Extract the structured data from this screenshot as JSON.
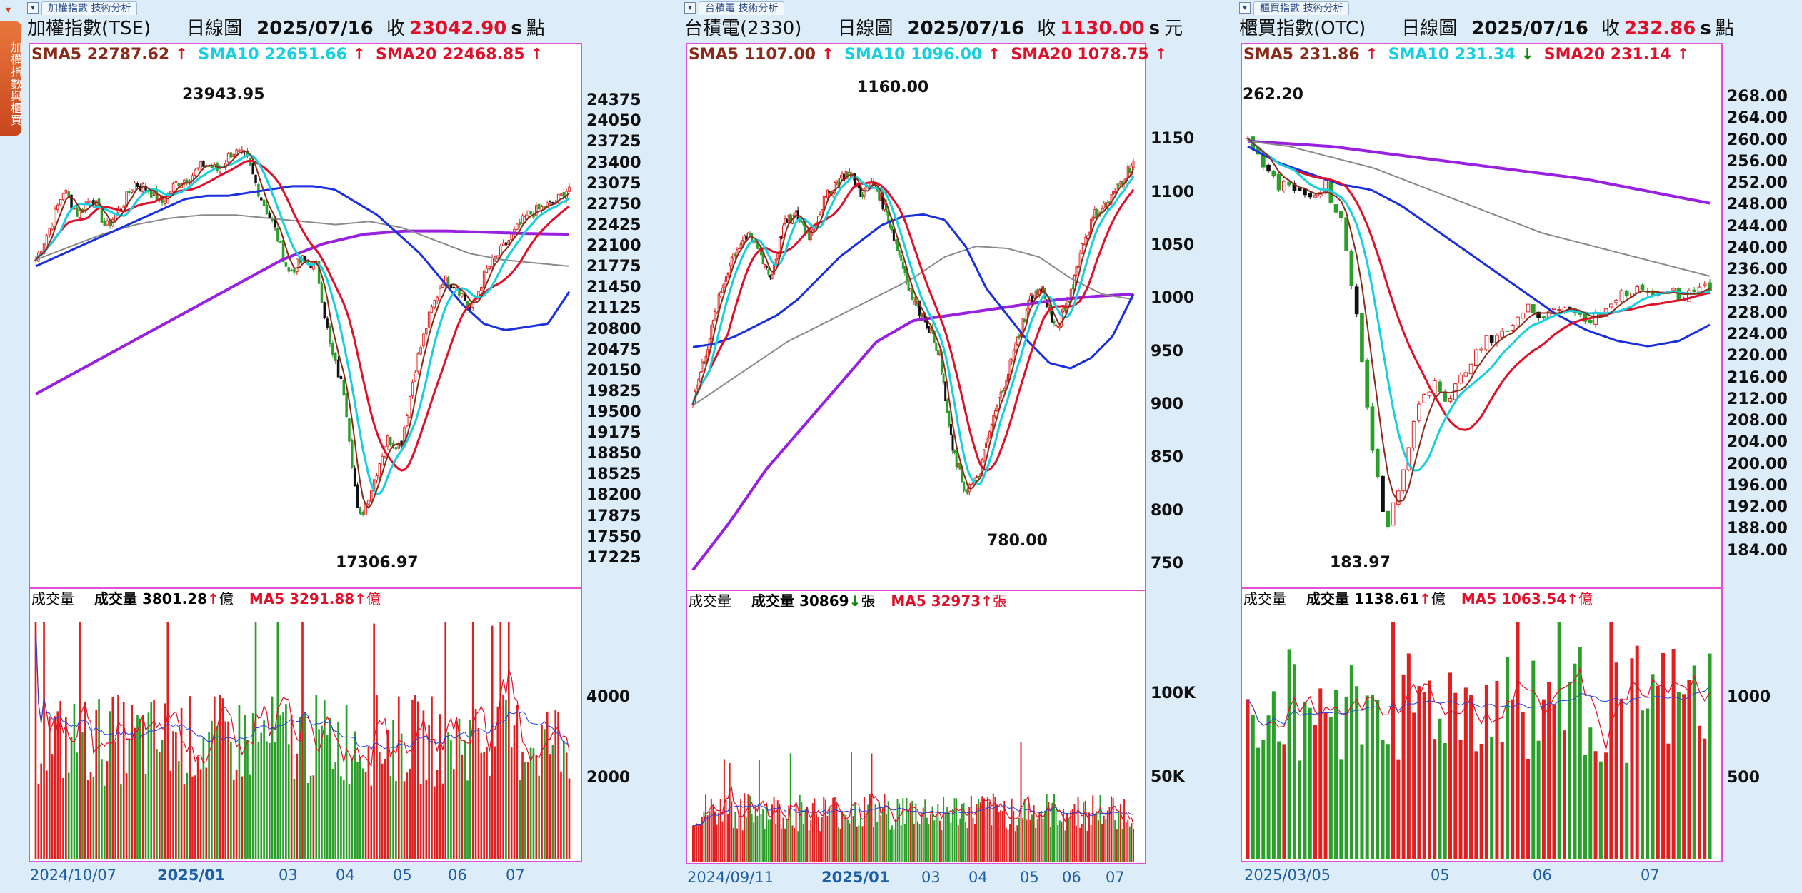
{
  "side_tab": {
    "label": "加權指數與櫃買"
  },
  "colors": {
    "sma5": "#8a2b1a",
    "sma10": "#14d0e0",
    "sma20": "#e0102a",
    "sma60": "#1a2fe0",
    "sma120": "#8a8a8a",
    "sma240": "#9a20e0",
    "up": "#e02020",
    "down": "#2aa02a",
    "frame": "#e050d8",
    "up_arrow": "#e0102a",
    "down_arrow": "#108a10"
  },
  "icons": {
    "up_arrow": "↑",
    "down_arrow": "↓",
    "pin": "▾"
  },
  "panels": [
    {
      "caption": "加權指數 技術分析",
      "name": "加權指數(TSE)",
      "period": "日線圖",
      "date": "2025/07/16",
      "close_label": "收",
      "close": "23042.90",
      "s": "s",
      "unit": "點",
      "sma5": "SMA5 22787.62",
      "sma10": "SMA10 22651.66",
      "sma20": "SMA20 22468.85",
      "sma5_dir": "up",
      "sma10_dir": "up",
      "sma20_dir": "up",
      "high": "23943.95",
      "low": "17306.97",
      "yticks": [
        "24375",
        "24050",
        "23725",
        "23400",
        "23075",
        "22750",
        "22425",
        "22100",
        "21775",
        "21450",
        "21125",
        "20800",
        "20475",
        "20150",
        "19825",
        "19500",
        "19175",
        "18850",
        "18525",
        "18200",
        "17875",
        "17550",
        "17225"
      ],
      "vol_label": "成交量",
      "vol_value_label": "成交量 3801.28",
      "vol_dir": "up",
      "vol_unit": "億",
      "vol_ma5": "MA5 3291.88",
      "vol_ma5_dir": "up",
      "vol_ma5_unit": "億",
      "vol_yticks": [
        "4000",
        "2000"
      ],
      "xticks": [
        "2024/10/07",
        "2025/01",
        "03",
        "04",
        "05",
        "06",
        "07"
      ],
      "chart_data": {
        "type": "candlestick",
        "ylim": [
          17000,
          24600
        ],
        "sma_values": {
          "SMA5": 22787.62,
          "SMA10": 22651.66,
          "SMA20": 22468.85
        },
        "close": 23042.9,
        "high": 23943.95,
        "low": 17306.97,
        "path": [
          21900,
          22400,
          23000,
          22600,
          22900,
          22400,
          22700,
          23100,
          23000,
          22800,
          23100,
          23200,
          23400,
          23300,
          23600,
          23500,
          22900,
          22400,
          21700,
          21900,
          21800,
          20500,
          19800,
          17800,
          18400,
          19100,
          19000,
          20200,
          21000,
          21600,
          21500,
          21100,
          21700,
          22000,
          22300,
          22600,
          22700,
          22800,
          23042
        ],
        "sma60_path": [
          21800,
          21950,
          22100,
          22250,
          22400,
          22550,
          22700,
          22850,
          22900,
          22900,
          22950,
          23000,
          23050,
          23050,
          23000,
          22800,
          22600,
          22300,
          22000,
          21600,
          21200,
          20900,
          20800,
          20850,
          20900,
          21400
        ],
        "sma120_path": [
          21900,
          22100,
          22300,
          22450,
          22550,
          22600,
          22600,
          22550,
          22500,
          22450,
          22500,
          22400,
          22200,
          22000,
          21900,
          21850,
          21800
        ],
        "sma240_path": [
          19800,
          20150,
          20500,
          20850,
          21200,
          21550,
          21900,
          22150,
          22300,
          22350,
          22350,
          22330,
          22310,
          22300
        ],
        "volume_ylim": [
          0,
          6000
        ],
        "volume_ma5": 3291.88
      }
    },
    {
      "caption": "台積電 技術分析",
      "name": "台積電(2330)",
      "period": "日線圖",
      "date": "2025/07/16",
      "close_label": "收",
      "close": "1130.00",
      "s": "s",
      "unit": "元",
      "sma5": "SMA5 1107.00",
      "sma10": "SMA10 1096.00",
      "sma20": "SMA20 1078.75",
      "sma5_dir": "up",
      "sma10_dir": "up",
      "sma20_dir": "up",
      "high": "1160.00",
      "low": "780.00",
      "yticks": [
        "1150",
        "1100",
        "1050",
        "1000",
        "950",
        "900",
        "850",
        "800",
        "750"
      ],
      "vol_label": "成交量",
      "vol_value_label": "成交量 30869",
      "vol_dir": "down",
      "vol_unit": "張",
      "vol_ma5": "MA5 32973",
      "vol_ma5_dir": "up",
      "vol_ma5_unit": "張",
      "vol_yticks": [
        "100K",
        "50K"
      ],
      "xticks": [
        "2024/09/11",
        "2025/01",
        "03",
        "04",
        "05",
        "06",
        "07"
      ],
      "chart_data": {
        "type": "candlestick",
        "ylim": [
          740,
          1200
        ],
        "sma_values": {
          "SMA5": 1107.0,
          "SMA10": 1096.0,
          "SMA20": 1078.75
        },
        "close": 1130.0,
        "high": 1160.0,
        "low": 780.0,
        "path": [
          905,
          950,
          1000,
          1040,
          1060,
          1050,
          1020,
          1070,
          1080,
          1060,
          1090,
          1110,
          1120,
          1100,
          1110,
          1080,
          1040,
          1000,
          980,
          950,
          860,
          820,
          830,
          880,
          920,
          960,
          1000,
          1010,
          970,
          1000,
          1050,
          1080,
          1090,
          1110,
          1130
        ],
        "sma60_path": [
          955,
          958,
          965,
          975,
          985,
          1000,
          1020,
          1040,
          1055,
          1070,
          1078,
          1080,
          1075,
          1050,
          1010,
          985,
          960,
          940,
          935,
          945,
          965,
          1005
        ],
        "sma120_path": [
          900,
          920,
          940,
          960,
          975,
          990,
          1005,
          1020,
          1040,
          1050,
          1048,
          1040,
          1020,
          1005,
          1000
        ],
        "sma240_path": [
          745,
          790,
          840,
          880,
          920,
          960,
          980,
          985,
          990,
          995,
          1000,
          1003,
          1005
        ],
        "volume_ylim": [
          0,
          145000
        ],
        "volume_ma5": 32973
      }
    },
    {
      "caption": "櫃買指數 技術分析",
      "name": "櫃買指數(OTC)",
      "period": "日線圖",
      "date": "2025/07/16",
      "close_label": "收",
      "close": "232.86",
      "s": "s",
      "unit": "點",
      "sma5": "SMA5 231.86",
      "sma10": "SMA10 231.34",
      "sma20": "SMA20 231.14",
      "sma5_dir": "up",
      "sma10_dir": "down",
      "sma20_dir": "up",
      "high": "262.20",
      "low": "183.97",
      "yticks": [
        "268.00",
        "264.00",
        "260.00",
        "256.00",
        "252.00",
        "248.00",
        "244.00",
        "240.00",
        "236.00",
        "232.00",
        "228.00",
        "224.00",
        "220.00",
        "216.00",
        "212.00",
        "208.00",
        "204.00",
        "200.00",
        "196.00",
        "192.00",
        "188.00",
        "184.00"
      ],
      "vol_label": "成交量",
      "vol_value_label": "成交量 1138.61",
      "vol_dir": "up",
      "vol_unit": "億",
      "vol_ma5": "MA5 1063.54",
      "vol_ma5_dir": "up",
      "vol_ma5_unit": "億",
      "vol_yticks": [
        "1000",
        "500"
      ],
      "xticks": [
        "2025/03/05",
        "05",
        "06",
        "07"
      ],
      "chart_data": {
        "type": "candlestick",
        "ylim": [
          180,
          270
        ],
        "sma_values": {
          "SMA5": 231.86,
          "SMA10": 231.34,
          "SMA20": 231.14
        },
        "close": 232.86,
        "high": 262.2,
        "low": 183.97,
        "path": [
          260,
          255,
          252,
          251,
          250,
          252,
          246,
          230,
          205,
          188,
          198,
          210,
          215,
          212,
          217,
          222,
          224,
          225,
          229,
          228,
          230,
          228,
          226,
          229,
          231,
          233,
          232,
          233,
          231,
          232,
          232.86
        ],
        "sma60_path": [
          259,
          256,
          254,
          252,
          251,
          248,
          244,
          240,
          236,
          232,
          228,
          225,
          223,
          222,
          223,
          226
        ],
        "sma120_path": [
          260,
          259,
          257,
          255,
          252,
          249,
          246,
          243,
          241,
          239,
          237,
          235
        ],
        "sma240_path": [
          260,
          259.5,
          259,
          258,
          257,
          256,
          255,
          254,
          253,
          251.5,
          250,
          248.5
        ],
        "volume_ylim": [
          0,
          1500
        ],
        "volume_ma5": 1063.54
      }
    }
  ]
}
